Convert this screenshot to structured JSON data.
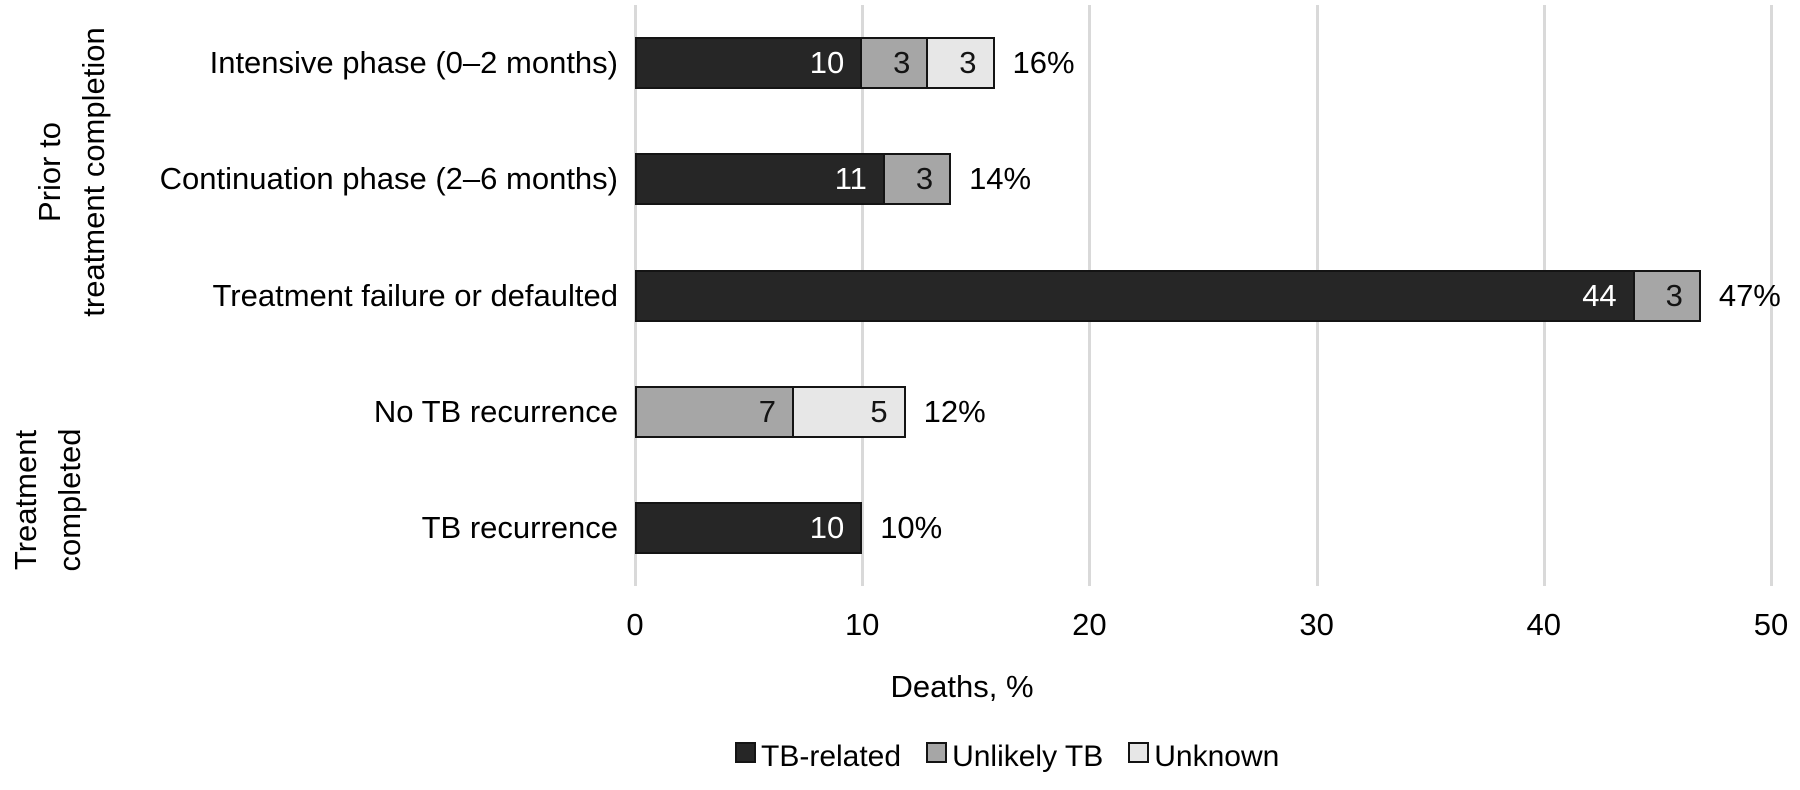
{
  "chart_data": {
    "type": "bar",
    "orientation": "horizontal",
    "stacked": true,
    "title": "",
    "xlabel": "Deaths, %",
    "xlim": [
      0,
      50
    ],
    "xticks": [
      0,
      10,
      20,
      30,
      40,
      50
    ],
    "grid": "vertical",
    "categories": [
      "Intensive phase (0–2 months)",
      "Continuation phase (2–6 months)",
      "Treatment failure or defaulted",
      "No TB recurrence",
      "TB recurrence"
    ],
    "row_groups": [
      {
        "lines": [
          "Prior to",
          "treatment completion"
        ],
        "rows": [
          0,
          1,
          2
        ]
      },
      {
        "lines": [
          "Treatment",
          "completed"
        ],
        "rows": [
          3,
          4
        ]
      }
    ],
    "series": [
      {
        "name": "TB-related",
        "color": "#262626",
        "label_color": "#ffffff",
        "values": [
          10,
          11,
          44,
          0,
          10
        ]
      },
      {
        "name": "Unlikely TB",
        "color": "#a6a6a6",
        "label_color": "#141414",
        "values": [
          3,
          3,
          3,
          7,
          0
        ]
      },
      {
        "name": "Unknown",
        "color": "#e7e7e7",
        "label_color": "#141414",
        "values": [
          3,
          0,
          0,
          5,
          0
        ]
      }
    ],
    "totals": [
      "16%",
      "14%",
      "47%",
      "12%",
      "10%"
    ],
    "legend": {
      "position": "bottom",
      "entries": [
        "TB-related",
        "Unlikely TB",
        "Unknown"
      ]
    }
  },
  "styles": {
    "background": "#ffffff",
    "grid_color": "#d9d9d9",
    "segment_border": "#141414",
    "text_color": "#000000"
  }
}
